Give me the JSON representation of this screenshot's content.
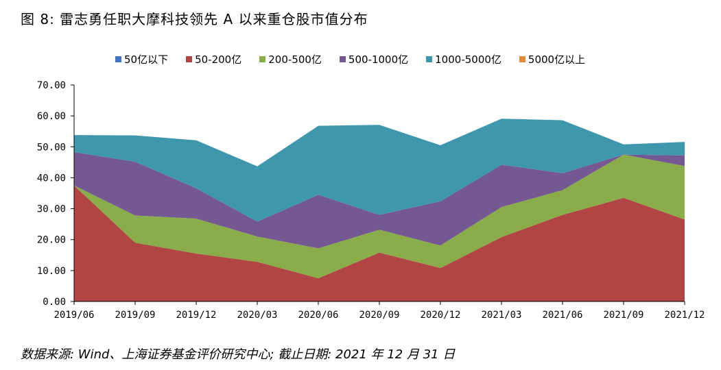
{
  "figure_title": "图 8: 雷志勇任职大摩科技领先 A 以来重仓股市值分布",
  "source_note": "数据来源: Wind、上海证券基金评价研究中心; 截止日期: 2021 年 12 月 31 日",
  "chart_data": {
    "type": "area",
    "stacked": true,
    "categories": [
      "2019/06",
      "2019/09",
      "2019/12",
      "2020/03",
      "2020/06",
      "2020/09",
      "2020/12",
      "2021/03",
      "2021/06",
      "2021/09",
      "2021/12"
    ],
    "y_ticks": [
      "0.00",
      "10.00",
      "20.00",
      "30.00",
      "40.00",
      "50.00",
      "60.00",
      "70.00"
    ],
    "ylim": [
      0,
      70
    ],
    "grid": false,
    "legend_position": "top",
    "series": [
      {
        "name": "50亿以下",
        "color": "#4472c4",
        "values": [
          0,
          0,
          0,
          0,
          0,
          0,
          0,
          0,
          0,
          0,
          0
        ]
      },
      {
        "name": "50-200亿",
        "color": "#b04543",
        "values": [
          37.5,
          19.0,
          15.5,
          12.8,
          7.5,
          15.8,
          10.8,
          20.8,
          28.0,
          33.5,
          26.5
        ]
      },
      {
        "name": "200-500亿",
        "color": "#8aac4a",
        "values": [
          0,
          8.8,
          11.3,
          8.2,
          9.7,
          7.4,
          7.3,
          9.7,
          8.0,
          14.0,
          17.3
        ]
      },
      {
        "name": "500-1000亿",
        "color": "#735891",
        "values": [
          10.8,
          17.4,
          9.8,
          4.8,
          17.3,
          4.8,
          14.3,
          13.7,
          5.5,
          0,
          3.4
        ]
      },
      {
        "name": "1000-5000亿",
        "color": "#3f97ae",
        "values": [
          5.5,
          8.5,
          15.5,
          17.9,
          22.3,
          29.1,
          18.1,
          14.9,
          17.1,
          3.3,
          4.4
        ]
      },
      {
        "name": "5000亿以上",
        "color": "#e08a3a",
        "values": [
          0,
          0,
          0,
          0,
          0,
          0,
          0,
          0,
          0,
          0,
          0
        ]
      }
    ]
  }
}
